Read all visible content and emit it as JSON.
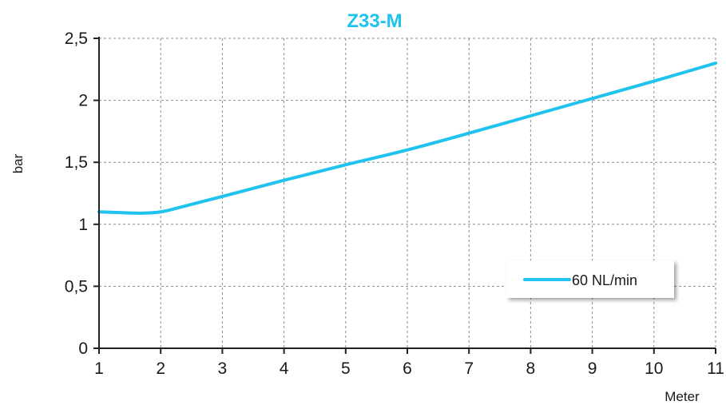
{
  "chart_data": {
    "type": "line",
    "title": "Z33-M",
    "xlabel": "Meter",
    "ylabel": "bar",
    "xlim": [
      1,
      11
    ],
    "ylim": [
      0,
      2.5
    ],
    "x_ticks": [
      1,
      2,
      3,
      4,
      5,
      6,
      7,
      8,
      9,
      10,
      11
    ],
    "x_tick_labels": [
      "1",
      "2",
      "3",
      "4",
      "5",
      "6",
      "7",
      "8",
      "9",
      "10",
      "11"
    ],
    "y_ticks": [
      0,
      0.5,
      1,
      1.5,
      2,
      2.5
    ],
    "y_tick_labels": [
      "0",
      "0,5",
      "1",
      "1,5",
      "2",
      "2,5"
    ],
    "grid": true,
    "legend_position": "right",
    "colors": {
      "title": "#1fc3ee",
      "series": "#1fc3ee",
      "axis": "#222222",
      "grid": "#8a8a8a"
    },
    "series": [
      {
        "name": "60 NL/min",
        "x": [
          1,
          1.3,
          1.7,
          2,
          2.3,
          3,
          4,
          5,
          6,
          7,
          8,
          9,
          10,
          11
        ],
        "y": [
          1.1,
          1.095,
          1.09,
          1.1,
          1.135,
          1.225,
          1.355,
          1.48,
          1.6,
          1.735,
          1.875,
          2.015,
          2.155,
          2.3
        ]
      }
    ]
  }
}
